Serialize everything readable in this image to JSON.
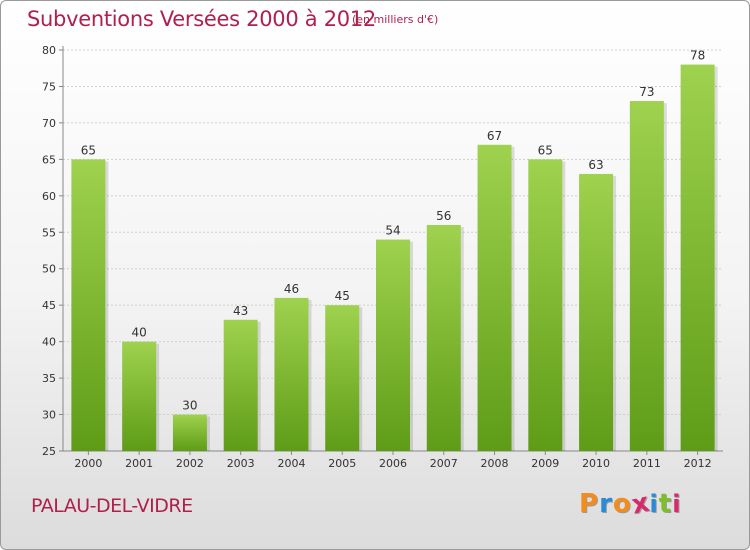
{
  "colors": {
    "title": "#b0204d",
    "bar_top": "#9fd24e",
    "bar_bottom": "#5e9c17",
    "grid": "#cfcfcf",
    "axis_text": "#333333"
  },
  "chart_data": {
    "type": "bar",
    "title": "Subventions Versées 2000 à 2012",
    "subtitle": "(en milliers d'€)",
    "categories": [
      "2000",
      "2001",
      "2002",
      "2003",
      "2004",
      "2005",
      "2006",
      "2007",
      "2008",
      "2009",
      "2010",
      "2011",
      "2012"
    ],
    "values": [
      65,
      40,
      30,
      43,
      46,
      45,
      54,
      56,
      67,
      65,
      63,
      73,
      78
    ],
    "ylim": [
      25,
      80
    ],
    "yticks": [
      25,
      30,
      35,
      40,
      45,
      50,
      55,
      60,
      65,
      70,
      75,
      80
    ],
    "grid": true,
    "legend": "none"
  },
  "footer": {
    "commune": "PALAU-DEL-VIDRE",
    "brand": {
      "letters": [
        "P",
        "r",
        "o",
        "x",
        "i",
        "t",
        "i"
      ],
      "colors": [
        "#f28c1e",
        "#2a8ad6",
        "#f28c1e",
        "#d62a6a",
        "#2a8ad6",
        "#7cbf2a",
        "#d62a6a"
      ]
    }
  }
}
